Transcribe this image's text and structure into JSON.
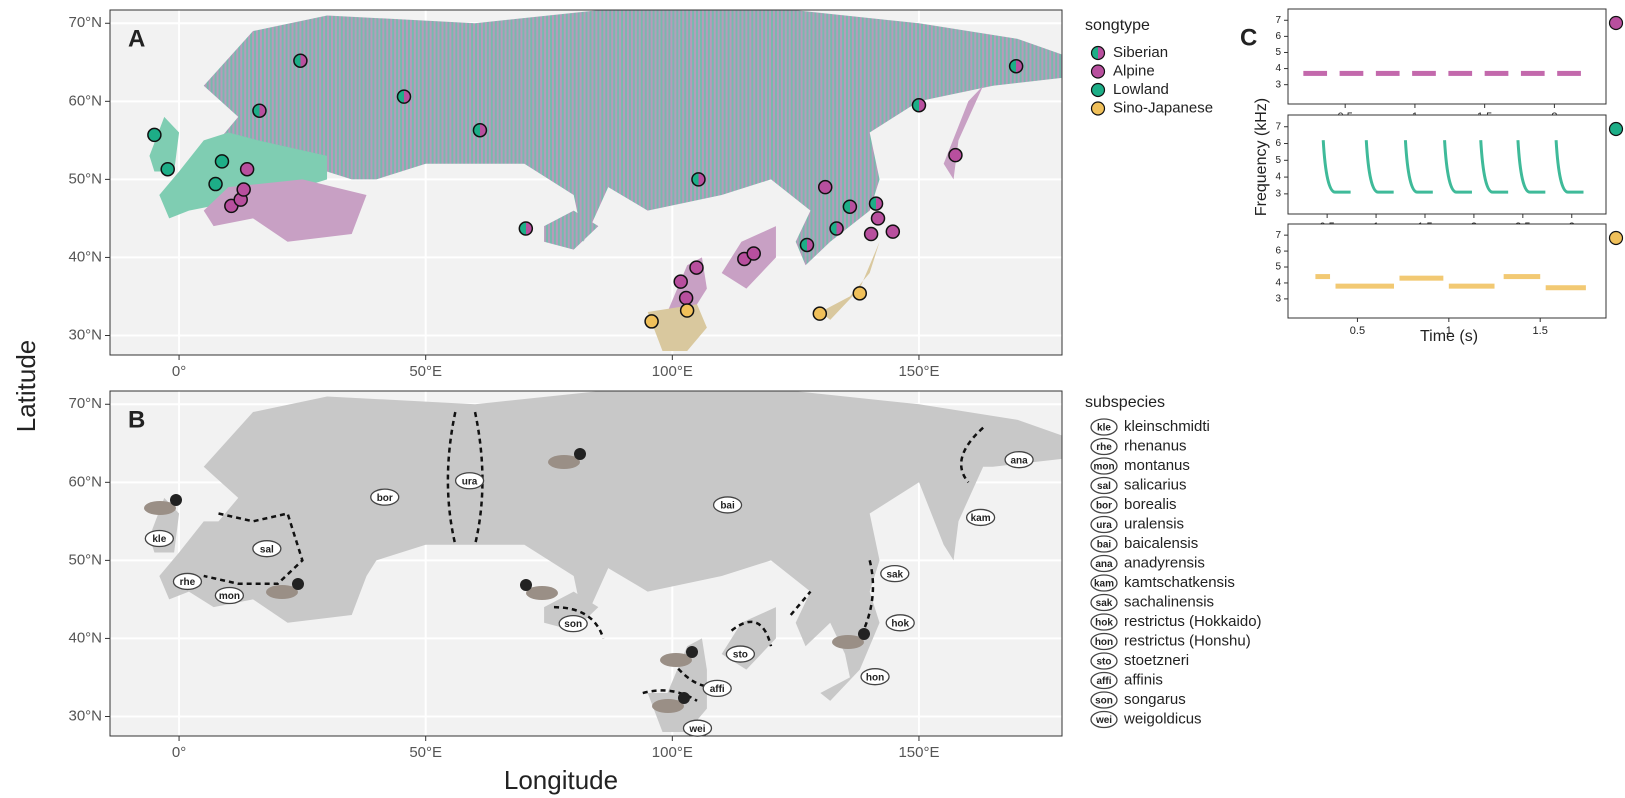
{
  "panel_labels": [
    "A",
    "B",
    "C"
  ],
  "map_axes": {
    "xlabel": "Longitude",
    "ylabel": "Latitude",
    "xlim": [
      -14,
      179
    ],
    "ylim": [
      27.5,
      71.7
    ],
    "xticks": [
      {
        "value": 0,
        "label": "0°"
      },
      {
        "value": 50,
        "label": "50°E"
      },
      {
        "value": 100,
        "label": "100°E"
      },
      {
        "value": 150,
        "label": "150°E"
      }
    ],
    "yticks": [
      {
        "value": 30,
        "label": "30°N"
      },
      {
        "value": 40,
        "label": "40°N"
      },
      {
        "value": 50,
        "label": "50°N"
      },
      {
        "value": 60,
        "label": "60°N"
      },
      {
        "value": 70,
        "label": "70°N"
      }
    ]
  },
  "songtype": {
    "title": "songtype",
    "series": [
      {
        "name": "Siberian",
        "colors": [
          "#1dae87",
          "#b84f9e"
        ],
        "lon": [
          24.6,
          45.6,
          61,
          105.3,
          16.3,
          169.7,
          150,
          141.3,
          70.3,
          127.3,
          133.3,
          136
        ],
        "lat": [
          65.2,
          60.6,
          56.3,
          50,
          58.8,
          64.5,
          59.5,
          46.9,
          43.7,
          41.6,
          43.7,
          46.5
        ]
      },
      {
        "name": "Alpine",
        "color": "#b84f9e",
        "lon": [
          10.6,
          12.5,
          13.1,
          13.8,
          101.7,
          102.8,
          104.9,
          114.6,
          116.5,
          157.4,
          131,
          140.3,
          141.7,
          144.7
        ],
        "lat": [
          46.6,
          47.4,
          48.7,
          51.3,
          36.9,
          34.8,
          38.7,
          39.8,
          40.5,
          53.1,
          49,
          43,
          45,
          43.3
        ]
      },
      {
        "name": "Lowland",
        "color": "#1dae87",
        "lon": [
          -5,
          -2.3,
          8.7,
          7.4
        ],
        "lat": [
          55.7,
          51.3,
          52.3,
          49.4
        ]
      },
      {
        "name": "Sino-Japanese",
        "color": "#f0c05a",
        "lon": [
          95.8,
          103,
          129.9,
          138
        ],
        "lat": [
          31.8,
          33.2,
          32.8,
          35.4
        ]
      }
    ]
  },
  "subspecies": {
    "title": "subspecies",
    "items": [
      {
        "code": "kle",
        "name": "kleinschmidti",
        "lon": -4,
        "lat": 52.8
      },
      {
        "code": "rhe",
        "name": "rhenanus",
        "lon": 1.7,
        "lat": 47.3
      },
      {
        "code": "mon",
        "name": "montanus",
        "lon": 10.2,
        "lat": 45.5
      },
      {
        "code": "sal",
        "name": "salicarius",
        "lon": 17.8,
        "lat": 51.5
      },
      {
        "code": "bor",
        "name": "borealis",
        "lon": 41.7,
        "lat": 58.1
      },
      {
        "code": "ura",
        "name": "uralensis",
        "lon": 58.9,
        "lat": 60.2
      },
      {
        "code": "bai",
        "name": "baicalensis",
        "lon": 111.2,
        "lat": 57.1
      },
      {
        "code": "ana",
        "name": "anadyrensis",
        "lon": 170.3,
        "lat": 62.9
      },
      {
        "code": "kam",
        "name": "kamtschatkensis",
        "lon": 162.5,
        "lat": 55.5
      },
      {
        "code": "sak",
        "name": "sachalinensis",
        "lon": 145.1,
        "lat": 48.3
      },
      {
        "code": "hok",
        "name": "restrictus (Hokkaido)",
        "lon": 146.2,
        "lat": 42
      },
      {
        "code": "hon",
        "name": "restrictus (Honshu)",
        "lon": 141.1,
        "lat": 35.1
      },
      {
        "code": "sto",
        "name": "stoetzneri",
        "lon": 113.8,
        "lat": 38
      },
      {
        "code": "affi",
        "name": "affinis",
        "lon": 109.1,
        "lat": 33.6
      },
      {
        "code": "son",
        "name": "songarus",
        "lon": 79.9,
        "lat": 41.9
      },
      {
        "code": "wei",
        "name": "weigoldicus",
        "lon": 105.1,
        "lat": 28.5
      }
    ]
  },
  "spectrograms": {
    "xlabel": "Time (s)",
    "ylabel": "Frequency (kHz)",
    "panels": [
      {
        "color": "#b84f9e",
        "xlim": [
          0.09,
          2.37
        ],
        "ylim": [
          1.8,
          7.7
        ],
        "xticks": [
          0.5,
          1,
          1.5,
          2
        ],
        "yticks": [
          3,
          4,
          5,
          6,
          7
        ],
        "notes": {
          "start": [
            0.2,
            0.46,
            0.72,
            0.98,
            1.24,
            1.5,
            1.76,
            2.02
          ],
          "end": [
            0.37,
            0.63,
            0.89,
            1.15,
            1.41,
            1.67,
            1.93,
            2.19
          ],
          "freq": [
            3.7,
            3.7,
            3.7,
            3.7,
            3.7,
            3.7,
            3.7,
            3.7
          ]
        }
      },
      {
        "color": "#1dae87",
        "xlim": [
          0.1,
          3.35
        ],
        "ylim": [
          1.8,
          7.7
        ],
        "xticks": [
          0.5,
          1,
          1.5,
          2,
          2.5,
          3
        ],
        "yticks": [
          3,
          4,
          5,
          6,
          7
        ],
        "notes": {
          "start": [
            0.46,
            0.9,
            1.3,
            1.7,
            2.07,
            2.45,
            2.84
          ],
          "end": [
            0.74,
            1.18,
            1.58,
            1.98,
            2.35,
            2.73,
            3.12
          ],
          "freq_high": 6.2,
          "freq_low": 3.1
        }
      },
      {
        "color": "#f0c05a",
        "xlim": [
          0.12,
          1.86
        ],
        "ylim": [
          1.8,
          7.7
        ],
        "xticks": [
          0.5,
          1,
          1.5
        ],
        "yticks": [
          3,
          4,
          5,
          6,
          7
        ],
        "notes": {
          "start": [
            0.27,
            0.38,
            0.73,
            1.0,
            1.3,
            1.53
          ],
          "end": [
            0.35,
            0.7,
            0.97,
            1.25,
            1.5,
            1.75
          ],
          "freq": [
            4.4,
            3.8,
            4.3,
            3.8,
            4.4,
            3.7
          ]
        }
      }
    ]
  }
}
